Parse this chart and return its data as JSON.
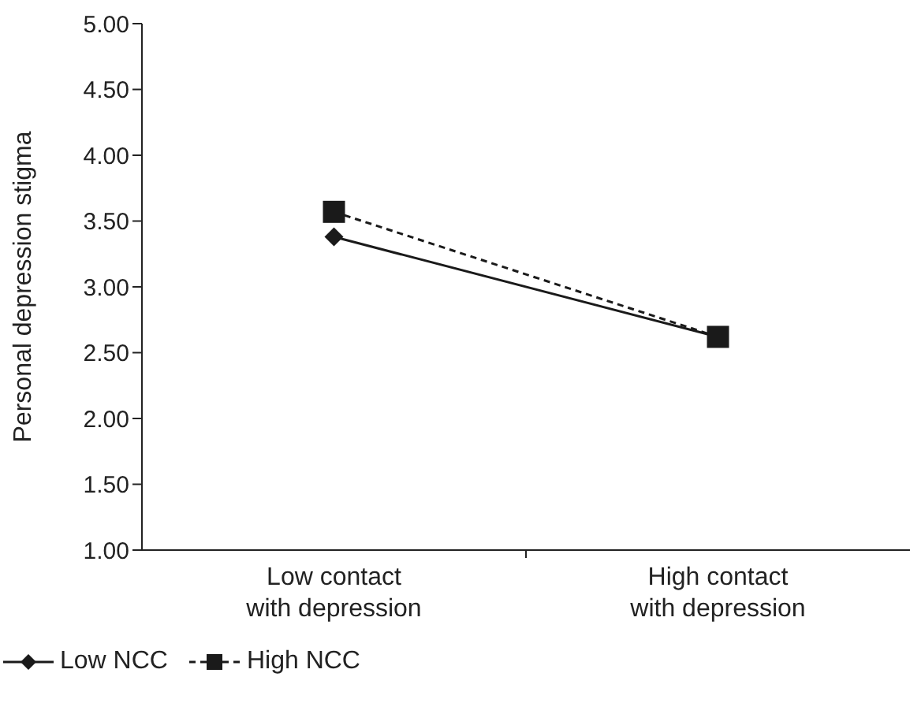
{
  "chart_data": {
    "type": "line",
    "ylabel": "Personal depression stigma",
    "categories": [
      "Low contact\nwith depression",
      "High contact\nwith depression"
    ],
    "series": [
      {
        "name": "Low NCC",
        "color": "#1a1a1a",
        "values": [
          3.38,
          2.62
        ],
        "marker": "diamond",
        "line_style": "solid"
      },
      {
        "name": "High NCC",
        "color": "#1a1a1a",
        "values": [
          3.57,
          2.62
        ],
        "marker": "square",
        "line_style": "dashed"
      }
    ],
    "ylim": [
      1,
      5
    ],
    "yticks": [
      {
        "value": 1,
        "label": "1.00"
      },
      {
        "value": 1.5,
        "label": "1.50"
      },
      {
        "value": 2,
        "label": "2.00"
      },
      {
        "value": 2.5,
        "label": "2.50"
      },
      {
        "value": 3,
        "label": "3.00"
      },
      {
        "value": 3.5,
        "label": "3.50"
      },
      {
        "value": 4,
        "label": "4.00"
      },
      {
        "value": 4.5,
        "label": "4.50"
      },
      {
        "value": 5,
        "label": "5.00"
      }
    ],
    "grid": false,
    "legend": "bottom left"
  }
}
